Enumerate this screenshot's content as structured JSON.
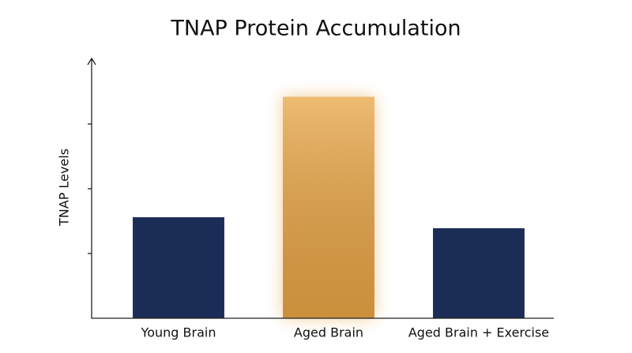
{
  "chart_data": {
    "type": "bar",
    "title": "TNAP Protein Accumulation",
    "y_label": "TNAP Levels",
    "categories": [
      "Young Brain",
      "Aged Brain",
      "Aged Brain + Exercise"
    ],
    "values": [
      1.56,
      3.42,
      1.39
    ],
    "colors": [
      "#1b2d57",
      "#e8a444",
      "#1b2d57"
    ],
    "ylim": [
      0,
      4
    ],
    "yticks": [
      1,
      2,
      3
    ],
    "grid": false
  }
}
